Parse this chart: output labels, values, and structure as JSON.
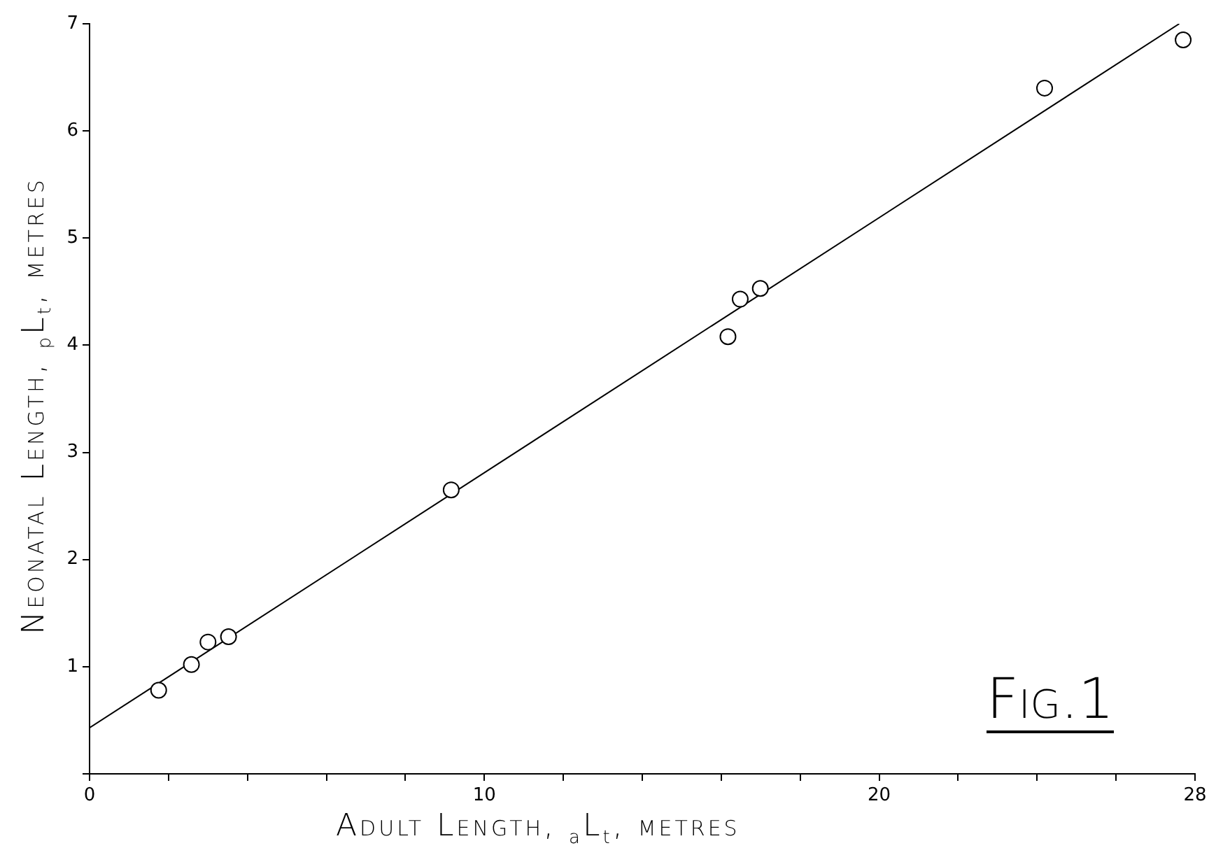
{
  "chart_data": {
    "type": "scatter",
    "xlabel": "Adult Length, $_{a}$L$_{t}$, metres",
    "ylabel": "Neonatal Length, $_{p}$L$_{t}$, metres",
    "annotations": [
      "Fig.1"
    ],
    "xlim": [
      0,
      28
    ],
    "ylim": [
      0,
      7
    ],
    "xticks": [
      0,
      {
        "value": 2,
        "label": null
      },
      {
        "value": 4,
        "label": null
      },
      {
        "value": 6,
        "label": null
      },
      {
        "value": 8,
        "label": null
      },
      10,
      {
        "value": 12,
        "label": null
      },
      {
        "value": 14,
        "label": null
      },
      {
        "value": 16,
        "label": null
      },
      {
        "value": 18,
        "label": null
      },
      20,
      {
        "value": 22,
        "label": null
      },
      {
        "value": 24,
        "label": null
      },
      {
        "value": 26,
        "label": null
      },
      28
    ],
    "yticks": [
      {
        "value": 0,
        "label": null
      },
      1,
      2,
      3,
      4,
      5,
      6,
      7
    ],
    "grid": false,
    "legend": false,
    "marker": "circle",
    "series": [
      {
        "type": "scatter",
        "color": "#000000",
        "x": [
          1.75,
          2.58,
          3.0,
          3.52,
          9.16,
          16.17,
          16.48,
          16.99,
          24.19,
          27.7
        ],
        "values": [
          0.78,
          1.02,
          1.23,
          1.28,
          2.65,
          4.08,
          4.43,
          4.53,
          6.4,
          6.85
        ]
      },
      {
        "type": "line",
        "color": "#000000",
        "line_style": "solid",
        "marker": "none",
        "x": [
          0,
          27.6
        ],
        "values": [
          0.43,
          7.0
        ]
      }
    ]
  }
}
